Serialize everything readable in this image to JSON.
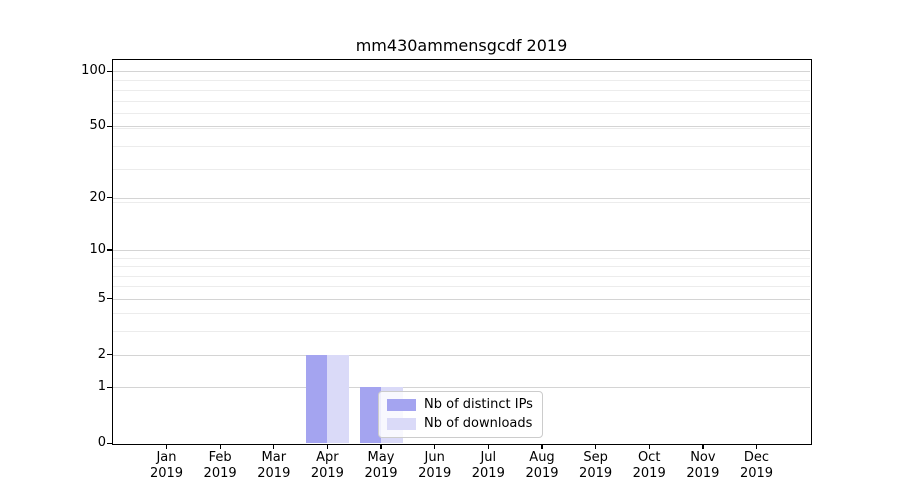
{
  "chart_data": {
    "type": "bar",
    "title": "mm430ammensgcdf 2019",
    "categories": [
      "Jan",
      "Feb",
      "Mar",
      "Apr",
      "May",
      "Jun",
      "Jul",
      "Aug",
      "Sep",
      "Oct",
      "Nov",
      "Dec"
    ],
    "x_tick_year": "2019",
    "series": [
      {
        "name": "Nb of distinct IPs",
        "color": "#a4a4f0",
        "values": [
          0,
          0,
          0,
          2,
          1,
          0,
          0,
          0,
          0,
          0,
          0,
          0
        ]
      },
      {
        "name": "Nb of downloads",
        "color": "#dadaf8",
        "values": [
          0,
          0,
          0,
          2,
          1,
          0,
          0,
          0,
          0,
          0,
          0,
          0
        ]
      }
    ],
    "xlabel": "",
    "ylabel": "",
    "y_axis": {
      "scale": "log1p",
      "ticks": [
        0,
        1,
        2,
        5,
        10,
        20,
        50,
        100
      ],
      "minor_gridlines": [
        3,
        4,
        6,
        7,
        8,
        9,
        19,
        29,
        39,
        49,
        59,
        69,
        79,
        89
      ],
      "top_value": 115
    },
    "grid": "horizontal",
    "legend": {
      "position": "lower-center",
      "frame": true
    },
    "colors": {
      "major_gridline": "#d4d4d4",
      "minor_gridline": "#ececec",
      "axis": "#000000",
      "background": "#ffffff"
    }
  }
}
